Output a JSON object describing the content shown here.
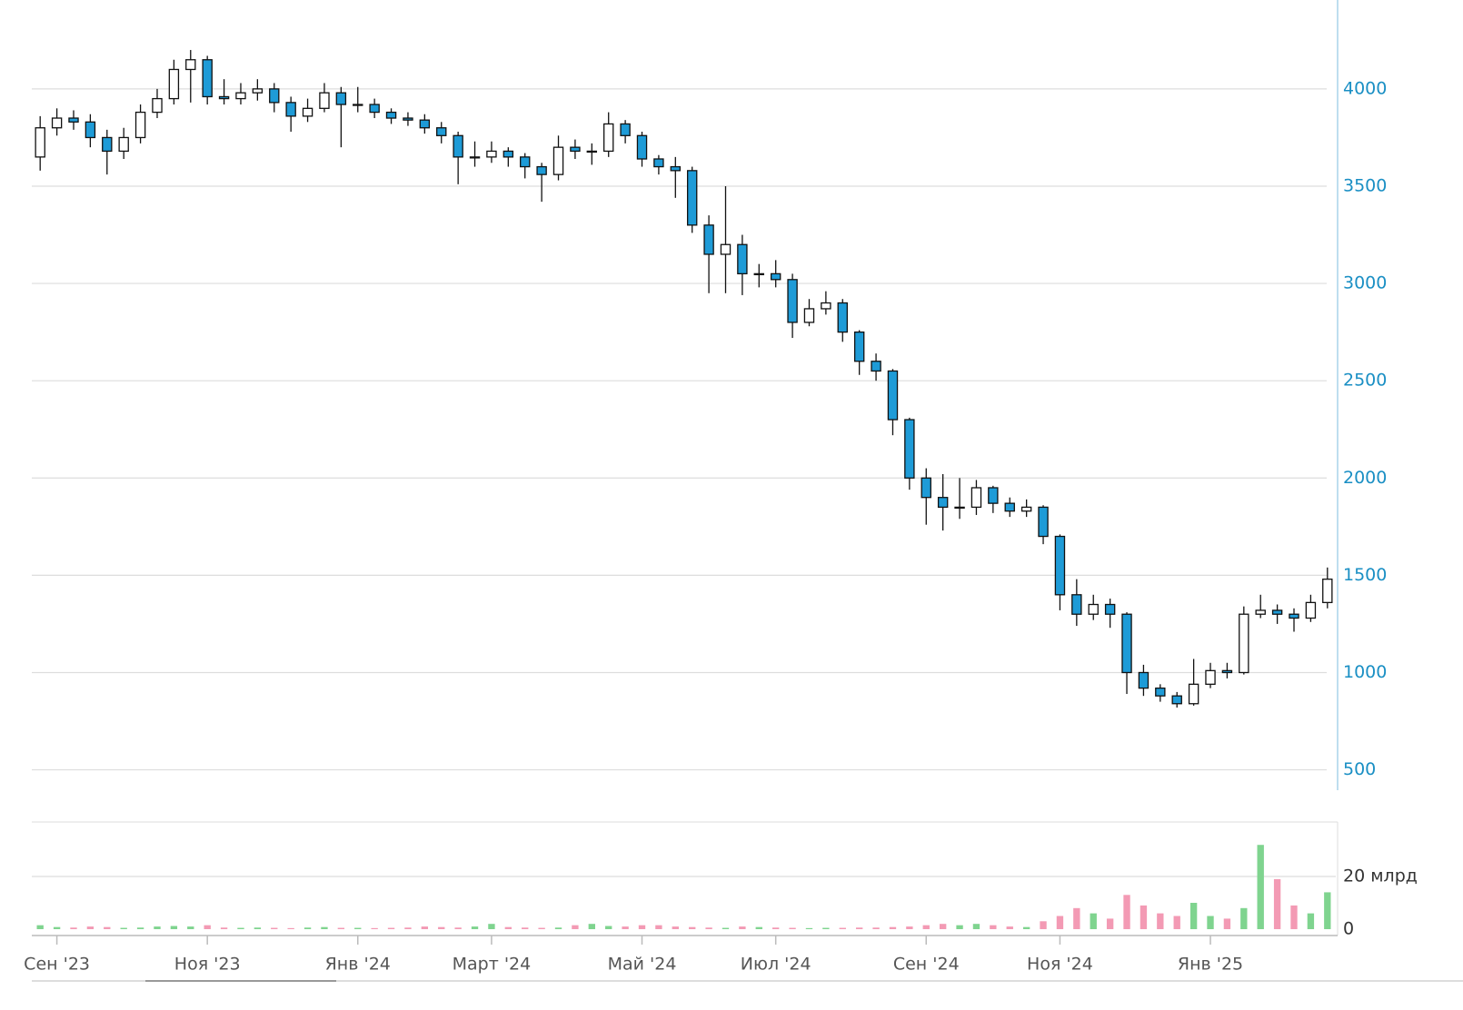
{
  "chart_data": {
    "type": "candlestick",
    "categories": [
      null,
      "Сен '23",
      null,
      null,
      null,
      null,
      null,
      null,
      null,
      null,
      "Ноя '23",
      null,
      null,
      null,
      null,
      null,
      null,
      null,
      null,
      "Янв '24",
      null,
      null,
      null,
      null,
      null,
      null,
      null,
      "Март '24",
      null,
      null,
      null,
      null,
      null,
      null,
      null,
      null,
      "Май '24",
      null,
      null,
      null,
      null,
      null,
      null,
      null,
      "Июл '24",
      null,
      null,
      null,
      null,
      null,
      null,
      null,
      null,
      "Сен '24",
      null,
      null,
      null,
      null,
      null,
      null,
      null,
      "Ноя '24",
      null,
      null,
      null,
      null,
      null,
      null,
      null,
      null,
      "Янв '25",
      null,
      null,
      null,
      null,
      null,
      null,
      null
    ],
    "open": [
      3650,
      3800,
      3850,
      3830,
      3750,
      3680,
      3750,
      3880,
      3950,
      4100,
      4150,
      3960,
      3950,
      3980,
      4000,
      3930,
      3860,
      3900,
      3980,
      3920,
      3920,
      3880,
      3850,
      3840,
      3800,
      3760,
      3650,
      3650,
      3680,
      3650,
      3600,
      3560,
      3700,
      3680,
      3680,
      3820,
      3760,
      3640,
      3600,
      3580,
      3300,
      3150,
      3200,
      3050,
      3050,
      3020,
      2800,
      2870,
      2900,
      2750,
      2600,
      2550,
      2300,
      2000,
      1900,
      1850,
      1850,
      1950,
      1870,
      1830,
      1850,
      1700,
      1400,
      1300,
      1350,
      1300,
      1000,
      920,
      880,
      840,
      940,
      1010,
      1000,
      1300,
      1320,
      1300,
      1280,
      1360
    ],
    "high": [
      3860,
      3900,
      3890,
      3870,
      3790,
      3800,
      3920,
      4000,
      4150,
      4200,
      4170,
      4050,
      4030,
      4050,
      4030,
      3960,
      3950,
      4030,
      4010,
      4010,
      3950,
      3900,
      3880,
      3870,
      3830,
      3780,
      3730,
      3730,
      3700,
      3670,
      3620,
      3760,
      3740,
      3720,
      3880,
      3840,
      3780,
      3660,
      3650,
      3600,
      3350,
      3500,
      3250,
      3100,
      3120,
      3050,
      2920,
      2960,
      2920,
      2760,
      2640,
      2560,
      2310,
      2050,
      2020,
      2000,
      1990,
      1960,
      1900,
      1890,
      1860,
      1710,
      1480,
      1400,
      1380,
      1310,
      1040,
      940,
      900,
      1070,
      1050,
      1050,
      1340,
      1400,
      1350,
      1330,
      1400,
      1540
    ],
    "low": [
      3580,
      3760,
      3790,
      3700,
      3560,
      3640,
      3720,
      3850,
      3920,
      3930,
      3920,
      3920,
      3920,
      3940,
      3880,
      3780,
      3830,
      3880,
      3700,
      3880,
      3850,
      3820,
      3810,
      3770,
      3720,
      3510,
      3600,
      3620,
      3600,
      3540,
      3420,
      3530,
      3640,
      3610,
      3650,
      3720,
      3600,
      3560,
      3440,
      3260,
      2950,
      2950,
      2940,
      2980,
      2980,
      2720,
      2780,
      2840,
      2700,
      2530,
      2500,
      2220,
      1940,
      1760,
      1730,
      1790,
      1810,
      1820,
      1800,
      1800,
      1660,
      1320,
      1240,
      1270,
      1230,
      890,
      880,
      850,
      820,
      830,
      920,
      970,
      990,
      1280,
      1250,
      1210,
      1260,
      1330
    ],
    "close": [
      3800,
      3850,
      3830,
      3750,
      3680,
      3750,
      3880,
      3950,
      4100,
      4150,
      3960,
      3950,
      3980,
      4000,
      3930,
      3860,
      3900,
      3980,
      3920,
      3920,
      3880,
      3850,
      3840,
      3800,
      3760,
      3650,
      3650,
      3680,
      3650,
      3600,
      3560,
      3700,
      3680,
      3680,
      3820,
      3760,
      3640,
      3600,
      3580,
      3300,
      3150,
      3200,
      3050,
      3050,
      3020,
      2800,
      2870,
      2900,
      2750,
      2600,
      2550,
      2300,
      2000,
      1900,
      1850,
      1850,
      1950,
      1870,
      1830,
      1850,
      1700,
      1400,
      1300,
      1350,
      1300,
      1000,
      920,
      880,
      840,
      940,
      1010,
      1000,
      1300,
      1320,
      1300,
      1280,
      1360,
      1480
    ],
    "volume": [
      1.5,
      0.8,
      0.6,
      1,
      0.8,
      0.5,
      0.6,
      1,
      1.2,
      1,
      1.5,
      0.6,
      0.5,
      0.6,
      0.5,
      0.4,
      0.6,
      0.8,
      0.5,
      0.5,
      0.4,
      0.5,
      0.6,
      1,
      0.8,
      0.6,
      1,
      2,
      0.8,
      0.6,
      0.5,
      0.6,
      1.5,
      2,
      1.2,
      1,
      1.5,
      1.5,
      1,
      0.8,
      0.6,
      0.5,
      1,
      0.8,
      0.6,
      0.5,
      0.4,
      0.5,
      0.5,
      0.6,
      0.6,
      0.8,
      1,
      1.5,
      2,
      1.5,
      2,
      1.5,
      1,
      0.8,
      3,
      5,
      8,
      6,
      4,
      13,
      9,
      6,
      5,
      10,
      5,
      4,
      8,
      32,
      19,
      9,
      6,
      14
    ],
    "ylim": [
      400,
      4457
    ],
    "yticks": [
      500,
      1000,
      1500,
      2000,
      2500,
      3000,
      3500,
      4000
    ],
    "y2lim": [
      0,
      40.7
    ],
    "y2ticks": [
      0,
      {
        "value": 20,
        "label": "20 млрд"
      }
    ],
    "up_color": "#ffffff",
    "down_color": "#1e9bd7",
    "volume_up_color": "#7fd48f",
    "volume_down_color": "#f39ab4",
    "grid": true
  }
}
